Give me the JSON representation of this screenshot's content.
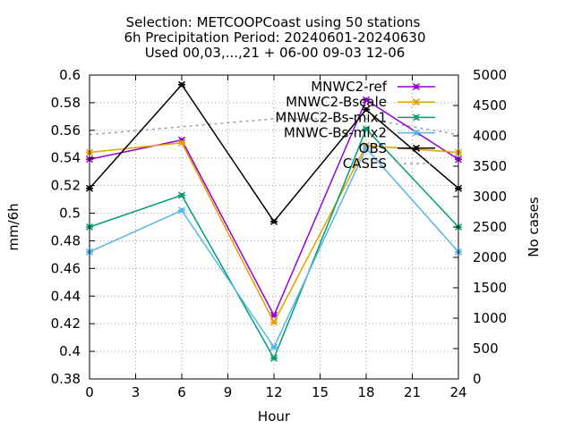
{
  "chart_data": {
    "type": "line",
    "title_lines": [
      "Selection: METCOOPCoast using    50 stations",
      "6h Precipitation   Period: 20240601-20240630",
      "Used 00,03,...,21 + 06-00 09-03 12-06"
    ],
    "xlabel": "Hour",
    "ylabel": "mm/6h",
    "y2label": "No cases",
    "xlim": [
      0,
      24
    ],
    "ylim": [
      0.38,
      0.6
    ],
    "y2lim": [
      0,
      5000
    ],
    "x_ticks": [
      "0",
      "3",
      "6",
      "9",
      "12",
      "15",
      "18",
      "21",
      "24"
    ],
    "y_ticks": [
      "0.38",
      "0.4",
      "0.42",
      "0.44",
      "0.46",
      "0.48",
      "0.5",
      "0.52",
      "0.54",
      "0.56",
      "0.58",
      "0.6"
    ],
    "y2_ticks": [
      "0",
      "500",
      "1000",
      "1500",
      "2000",
      "2500",
      "3000",
      "3500",
      "4000",
      "4500",
      "5000"
    ],
    "grid": true,
    "legend_position": "top-right",
    "series": [
      {
        "name": "MNWC2-ref",
        "color": "#9400d3",
        "style": "solid",
        "marker": "cross",
        "x": [
          0,
          6,
          12,
          18,
          24
        ],
        "values": [
          0.539,
          0.553,
          0.426,
          0.582,
          0.539
        ]
      },
      {
        "name": "MNWC2-Bscale",
        "color": "#e69f00",
        "style": "solid",
        "marker": "cross",
        "x": [
          0,
          6,
          12,
          18,
          24
        ],
        "values": [
          0.544,
          0.551,
          0.421,
          0.549,
          0.544
        ]
      },
      {
        "name": "MNWC2-Bs-mix1",
        "color": "#009e73",
        "style": "solid",
        "marker": "cross",
        "x": [
          0,
          6,
          12,
          18,
          24
        ],
        "values": [
          0.49,
          0.513,
          0.395,
          0.561,
          0.49
        ]
      },
      {
        "name": "MNWC-Bs-mix2",
        "color": "#56b4e9",
        "style": "solid",
        "marker": "cross",
        "x": [
          0,
          6,
          12,
          18,
          24
        ],
        "values": [
          0.472,
          0.502,
          0.403,
          0.547,
          0.472
        ]
      },
      {
        "name": "OBS",
        "color": "#000000",
        "style": "solid",
        "marker": "cross",
        "x": [
          0,
          6,
          12,
          18,
          24
        ],
        "values": [
          0.518,
          0.593,
          0.494,
          0.575,
          0.518
        ]
      },
      {
        "name": "CASES",
        "color": "#a0a0a0",
        "style": "dashed",
        "marker": "none",
        "axis": "y2",
        "x": [
          0,
          6,
          12,
          18,
          24
        ],
        "values": [
          4020,
          4150,
          4280,
          4280,
          4020
        ]
      }
    ]
  }
}
